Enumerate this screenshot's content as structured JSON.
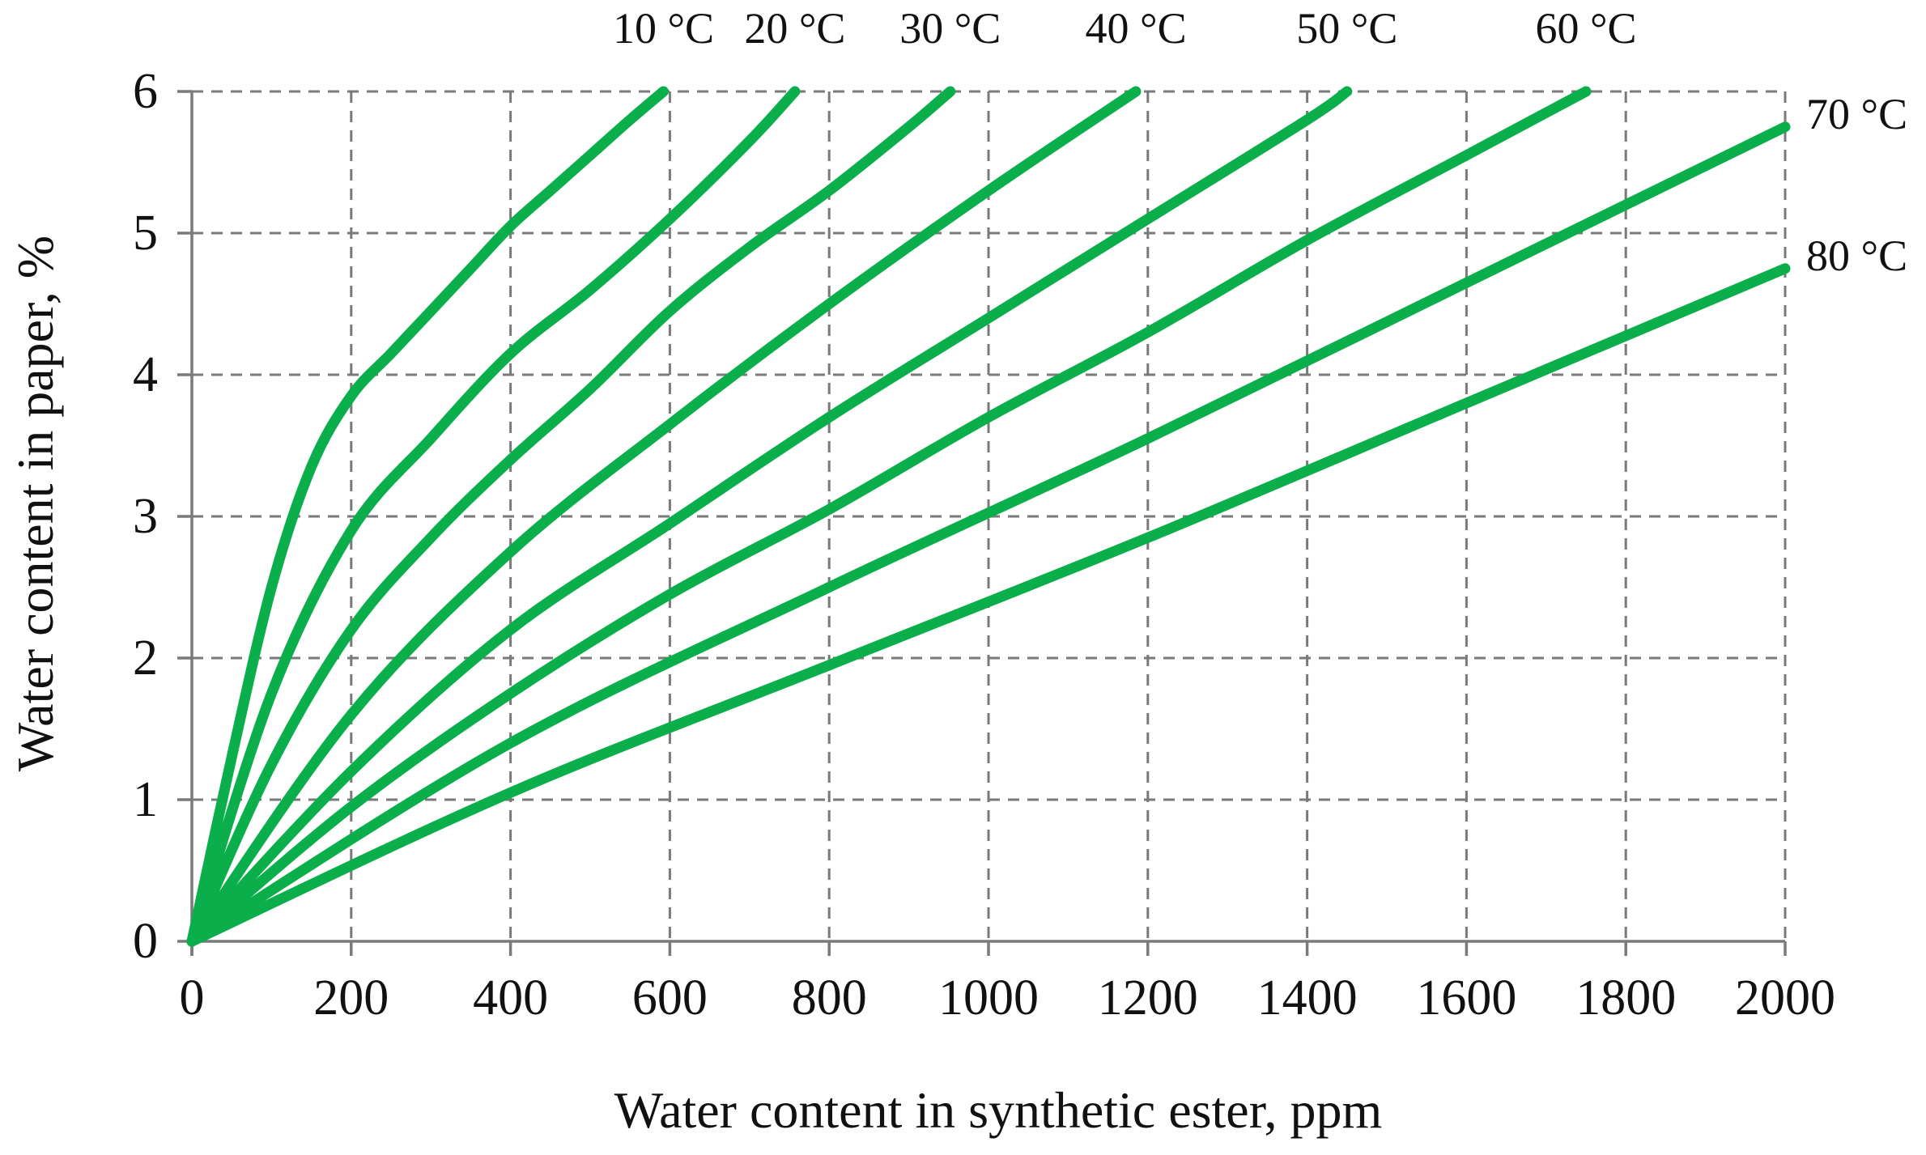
{
  "chart_data": {
    "type": "line",
    "title": "",
    "xlabel": "Water content in synthetic ester, ppm",
    "ylabel": "Water content in paper, %",
    "xlim": [
      0,
      2000
    ],
    "ylim": [
      0,
      6
    ],
    "xticks": [
      0,
      200,
      400,
      600,
      800,
      1000,
      1200,
      1400,
      1600,
      1800,
      2000
    ],
    "yticks": [
      0,
      1,
      2,
      3,
      4,
      5,
      6
    ],
    "xtick_labels": [
      "0",
      "200",
      "400",
      "600",
      "800",
      "1000",
      "1200",
      "1400",
      "1600",
      "1800",
      "2000"
    ],
    "ytick_labels": [
      "0",
      "1",
      "2",
      "3",
      "4",
      "5",
      "6"
    ],
    "grid": true,
    "line_color": "#0aaf4c",
    "series": [
      {
        "name": "10 °C",
        "label_position": "top",
        "x": [
          0,
          50,
          100,
          150,
          200,
          250,
          300,
          350,
          400,
          450,
          500,
          550,
          592
        ],
        "y": [
          0,
          1.3,
          2.5,
          3.35,
          3.85,
          4.15,
          4.45,
          4.75,
          5.05,
          5.3,
          5.55,
          5.8,
          6.0
        ]
      },
      {
        "name": "20 °C",
        "label_position": "top",
        "x": [
          0,
          100,
          200,
          300,
          400,
          500,
          600,
          700,
          757
        ],
        "y": [
          0,
          1.75,
          2.9,
          3.55,
          4.15,
          4.6,
          5.1,
          5.65,
          6.0
        ]
      },
      {
        "name": "30 °C",
        "label_position": "top",
        "x": [
          0,
          100,
          200,
          300,
          400,
          500,
          600,
          700,
          800,
          900,
          952
        ],
        "y": [
          0,
          1.25,
          2.2,
          2.85,
          3.4,
          3.9,
          4.45,
          4.9,
          5.3,
          5.75,
          6.0
        ]
      },
      {
        "name": "40 °C",
        "label_position": "top",
        "x": [
          0,
          200,
          400,
          600,
          800,
          1000,
          1185
        ],
        "y": [
          0,
          1.6,
          2.75,
          3.65,
          4.5,
          5.3,
          6.0
        ]
      },
      {
        "name": "50 °C",
        "label_position": "top",
        "x": [
          0,
          200,
          400,
          600,
          800,
          1000,
          1200,
          1400,
          1450
        ],
        "y": [
          0,
          1.2,
          2.2,
          2.95,
          3.7,
          4.4,
          5.1,
          5.8,
          6.0
        ]
      },
      {
        "name": "60 °C",
        "label_position": "top",
        "x": [
          0,
          200,
          400,
          600,
          800,
          1000,
          1200,
          1400,
          1600,
          1750
        ],
        "y": [
          0,
          0.95,
          1.75,
          2.45,
          3.05,
          3.7,
          4.3,
          4.95,
          5.55,
          6.0
        ]
      },
      {
        "name": "70 °C",
        "label_position": "right",
        "x": [
          0,
          400,
          800,
          1200,
          1600,
          2000
        ],
        "y": [
          0,
          1.4,
          2.5,
          3.55,
          4.65,
          5.75
        ]
      },
      {
        "name": "80 °C",
        "label_position": "right",
        "x": [
          0,
          400,
          800,
          1200,
          1600,
          2000
        ],
        "y": [
          0,
          1.05,
          1.95,
          2.85,
          3.8,
          4.75
        ]
      }
    ]
  }
}
